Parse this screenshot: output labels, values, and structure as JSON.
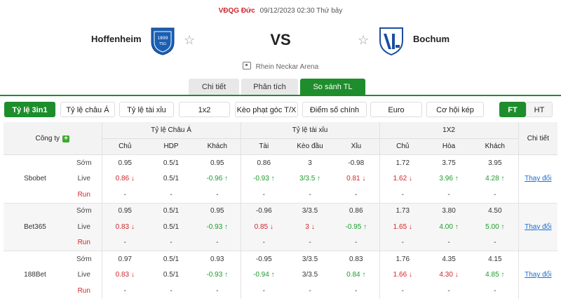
{
  "header": {
    "league": "VĐQG Đức",
    "datetime": "09/12/2023 02:30 Thứ bảy",
    "home_team": "Hoffenheim",
    "away_team": "Bochum",
    "vs": "VS",
    "stadium": "Rhein Neckar Arena"
  },
  "tabs": [
    {
      "label": "Chi tiết"
    },
    {
      "label": "Phân tích"
    },
    {
      "label": "So sánh TL"
    }
  ],
  "options": {
    "items": [
      "Tỷ lệ 3in1",
      "Tỷ lệ châu Á",
      "Tỷ lệ tài xỉu",
      "1x2",
      "Kèo phạt góc T/X",
      "Điểm số chính xác",
      "Euro Handicap",
      "Cơ hội kép"
    ],
    "ft": "FT",
    "ht": "HT"
  },
  "table": {
    "company_header": "Công ty",
    "groups": [
      "Tỷ lệ Châu Á",
      "Tỷ lệ tài xỉu",
      "1X2"
    ],
    "detail_header": "Chi tiết",
    "sub_headers": [
      "Chủ",
      "HDP",
      "Khách",
      "Tài",
      "Kèo đầu",
      "Xỉu",
      "Chủ",
      "Hòa",
      "Khách"
    ],
    "row_types": [
      "Sớm",
      "Live",
      "Run"
    ],
    "detail_link": "Thay đổi",
    "companies": [
      {
        "name": "Sbobet",
        "rows": [
          [
            "0.95",
            "0.5/1",
            "0.95",
            "0.86",
            "3",
            "-0.98",
            "1.72",
            "3.75",
            "3.95"
          ],
          [
            "0.86",
            "0.5/1",
            "-0.96",
            "-0.93",
            "3/3.5",
            "0.81",
            "1.62",
            "3.96",
            "4.28"
          ],
          [
            "-",
            "-",
            "-",
            "-",
            "-",
            "-",
            "-",
            "-",
            "-"
          ]
        ]
      },
      {
        "name": "Bet365",
        "rows": [
          [
            "0.95",
            "0.5/1",
            "0.95",
            "-0.96",
            "3/3.5",
            "0.86",
            "1.73",
            "3.80",
            "4.50"
          ],
          [
            "0.83",
            "0.5/1",
            "-0.93",
            "0.85",
            "3",
            "-0.95",
            "1.65",
            "4.00",
            "5.00"
          ],
          [
            "-",
            "-",
            "-",
            "-",
            "-",
            "-",
            "-",
            "-",
            "-"
          ]
        ]
      },
      {
        "name": "188Bet",
        "rows": [
          [
            "0.97",
            "0.5/1",
            "0.93",
            "-0.95",
            "3/3.5",
            "0.83",
            "1.76",
            "4.35",
            "4.15"
          ],
          [
            "0.83",
            "0.5/1",
            "-0.93",
            "-0.94",
            "3/3.5",
            "0.84",
            "1.66",
            "4.30",
            "4.85"
          ],
          [
            "-",
            "-",
            "-",
            "-",
            "-",
            "-",
            "-",
            "-",
            "-"
          ]
        ]
      }
    ]
  },
  "colors": {
    "accent": "#1e8d2c",
    "down": "#d0262b",
    "up": "#1e9b2c",
    "link": "#1b6ed1"
  }
}
